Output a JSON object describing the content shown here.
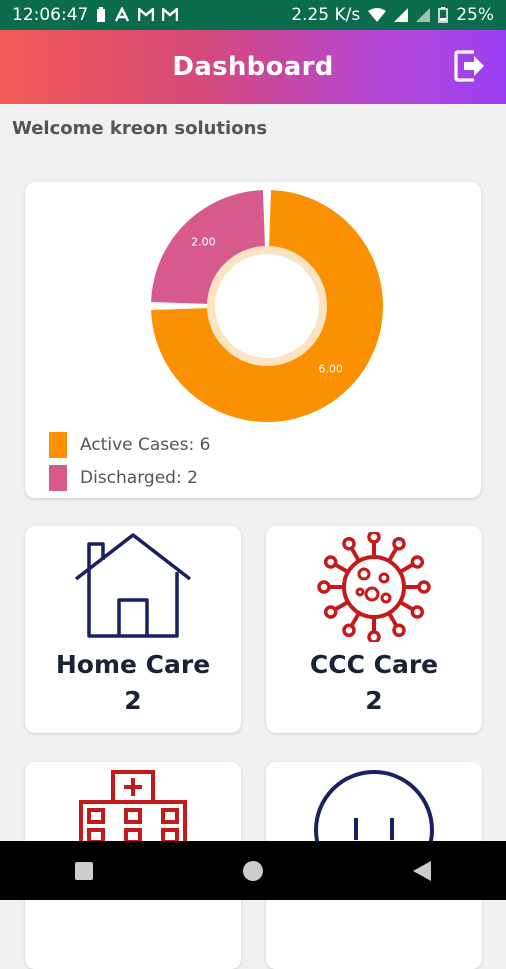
{
  "status_bar": {
    "time": "12:06:47",
    "net_speed": "2.25 K/s",
    "battery": "25%",
    "notif_icons": [
      "battery-saver-icon",
      "signal-a-icon",
      "gmail-icon",
      "gmail-icon"
    ]
  },
  "app_bar": {
    "title": "Dashboard",
    "action_icon": "logout-icon"
  },
  "welcome_text": "Welcome kreon solutions",
  "chart_data": {
    "type": "pie",
    "donut": true,
    "slices": [
      {
        "label": "6.00",
        "value": 6,
        "color": "#fb9000"
      },
      {
        "label": "2.00",
        "value": 2,
        "color": "#d85a8d"
      }
    ],
    "legend": [
      {
        "text": "Active Cases: 6",
        "color": "#fb9000"
      },
      {
        "text": "Discharged: 2",
        "color": "#d85a8d"
      }
    ],
    "legend_position": "bottom-left"
  },
  "tiles": [
    {
      "label": "Home Care",
      "value": "2",
      "icon": "house-icon",
      "icon_color": "#1b1f64"
    },
    {
      "label": "CCC Care",
      "value": "2",
      "icon": "virus-icon",
      "icon_color": "#c51a1a"
    },
    {
      "label": "",
      "value": "",
      "icon": "hospital-icon",
      "icon_color": "#c51a1a"
    },
    {
      "label": "",
      "value": "",
      "icon": "smiley-icon",
      "icon_color": "#1b1f64"
    }
  ],
  "nav_bar": [
    "recents-button",
    "home-button",
    "back-button"
  ]
}
